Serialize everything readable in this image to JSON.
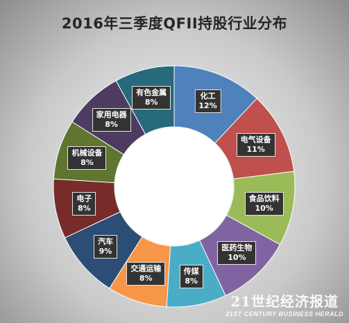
{
  "chart_data": {
    "type": "pie",
    "title": "2016年三季度QFII持股行业分布",
    "categories": [
      "化工",
      "电气设备",
      "食品饮料",
      "医药生物",
      "传媒",
      "交通运输",
      "汽车",
      "电子",
      "机械设备",
      "家用电器",
      "有色金属"
    ],
    "values": [
      12,
      11,
      10,
      10,
      8,
      8,
      9,
      8,
      8,
      8,
      8
    ],
    "value_labels": [
      "12%",
      "11%",
      "10%",
      "10%",
      "8%",
      "8%",
      "9%",
      "8%",
      "8%",
      "8%",
      "8%"
    ],
    "colors": [
      "#4f81bd",
      "#c0504d",
      "#9bbb59",
      "#8064a2",
      "#4bacc6",
      "#f79646",
      "#2c4d75",
      "#772c2a",
      "#5f7530",
      "#4d3b62",
      "#276a7c"
    ],
    "donut": true,
    "legend": "none"
  },
  "watermark": {
    "main": "21世纪经济报道",
    "sub": "21ST CENTURY BUSINESS HERALD"
  }
}
